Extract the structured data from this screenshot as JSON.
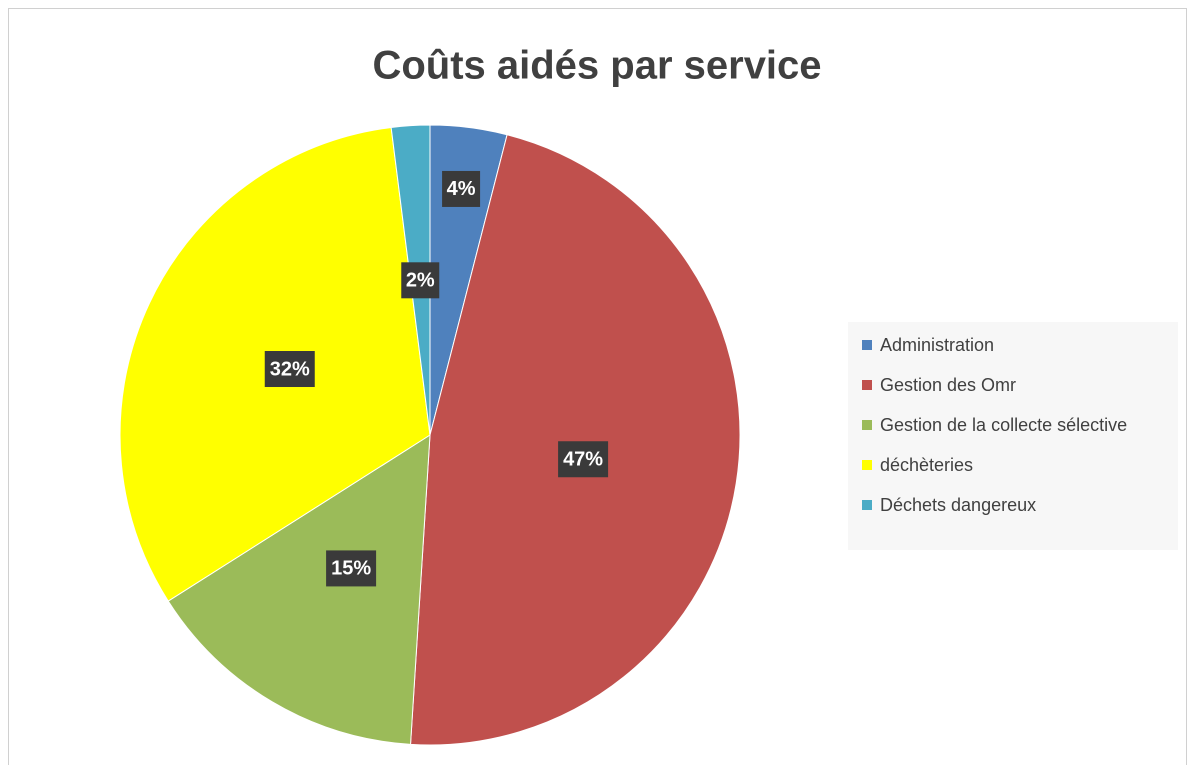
{
  "chart_data": {
    "type": "pie",
    "title": "Coûts aidés par service",
    "categories": [
      "Administration",
      "Gestion des Omr",
      "Gestion de la collecte sélective",
      "déchèteries",
      "Déchets dangereux"
    ],
    "values": [
      4,
      47,
      15,
      32,
      2
    ],
    "value_labels": [
      "4%",
      "47%",
      "15%",
      "32%",
      "2%"
    ],
    "colors": [
      "#4f81bd",
      "#c0504d",
      "#9bbb59",
      "#ffff00",
      "#4bacc6"
    ],
    "legend": "right"
  }
}
